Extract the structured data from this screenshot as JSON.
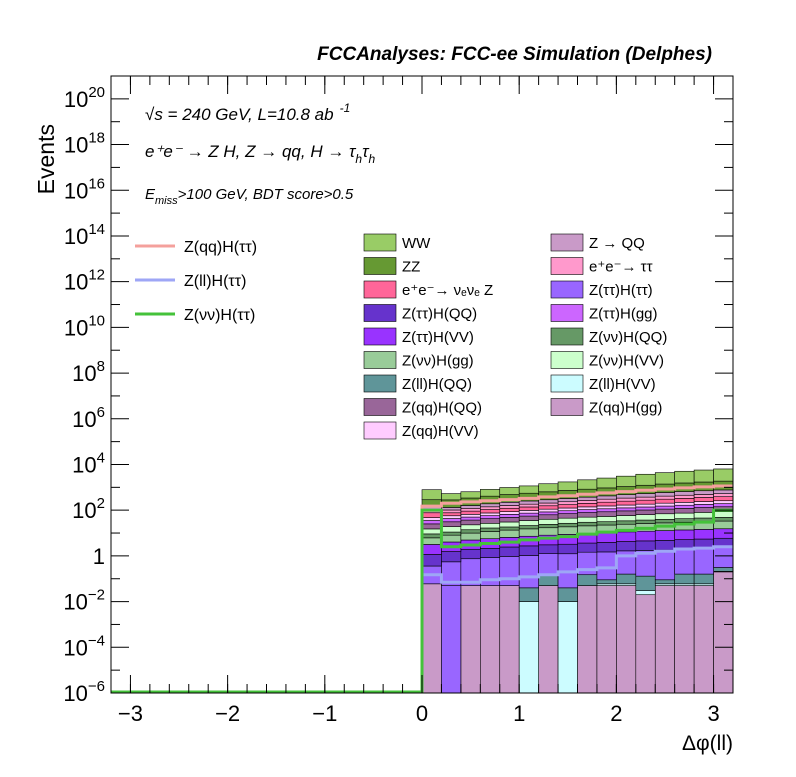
{
  "header": {
    "title": "FCCAnalyses: FCC-ee Simulation (Delphes)",
    "line1": "√s = 240 GeV, L=10.8 ab",
    "line1_sup": "-1",
    "line2": "e⁺e⁻ → Z H, Z → qq, H → τ",
    "line2_sub": "h",
    "line2_tail": "τ",
    "line2_sub2": "h",
    "line3_main": "E",
    "line3_sub": "miss",
    "line3_tail": ">100 GeV, BDT score>0.5"
  },
  "colors": {
    "frame": "#000000",
    "signal_zqq": "#f4a09c",
    "signal_zll": "#9ea6f6",
    "signal_znn": "#44c23a"
  },
  "chart_data": {
    "type": "area",
    "xlabel": "Δφ(ll)",
    "ylabel": "Events",
    "y_scale": "log",
    "xlim": [
      -3.2,
      3.2
    ],
    "ylim": [
      1e-06,
      1e+21
    ],
    "x_ticks": [
      "−3",
      "−2",
      "−1",
      "0",
      "1",
      "2",
      "3"
    ],
    "x_tick_values": [
      -3,
      -2,
      -1,
      0,
      1,
      2,
      3
    ],
    "y_ticks": [
      {
        "base": "10",
        "exp": "20",
        "value": 1e+20
      },
      {
        "base": "10",
        "exp": "18",
        "value": 1e+18
      },
      {
        "base": "10",
        "exp": "16",
        "value": 1e+16
      },
      {
        "base": "10",
        "exp": "14",
        "value": 100000000000000.0
      },
      {
        "base": "10",
        "exp": "12",
        "value": 1000000000000.0
      },
      {
        "base": "10",
        "exp": "10",
        "value": 10000000000.0
      },
      {
        "base": "10",
        "exp": "8",
        "value": 100000000.0
      },
      {
        "base": "10",
        "exp": "6",
        "value": 1000000.0
      },
      {
        "base": "10",
        "exp": "4",
        "value": 10000.0
      },
      {
        "base": "10",
        "exp": "2",
        "value": 100.0
      },
      {
        "base": "1",
        "exp": "",
        "value": 1
      },
      {
        "base": "10",
        "exp": "−2",
        "value": 0.01
      },
      {
        "base": "10",
        "exp": "−4",
        "value": 0.0001
      },
      {
        "base": "10",
        "exp": "−6",
        "value": 1e-06
      }
    ],
    "bin_edges": [
      0.0,
      0.2,
      0.4,
      0.6,
      0.8,
      1.0,
      1.2,
      1.4,
      1.6,
      1.8,
      2.0,
      2.2,
      2.4,
      2.6,
      2.8,
      3.0,
      3.2
    ],
    "stack_layers": [
      {
        "fill": "#c99ac8",
        "values": [
          0.06,
          0.0,
          0.05,
          0.05,
          0.05,
          0.0,
          0.05,
          0.0,
          0.05,
          0.05,
          0.05,
          0.02,
          0.05,
          0.05,
          0.05,
          0.2
        ]
      },
      {
        "fill": "#ccfcff",
        "values": [
          0.0,
          0.0,
          0.0,
          0.0,
          0.0,
          0.01,
          0.0,
          0.01,
          0.0,
          0.01,
          0.01,
          0.01,
          0.01,
          0.01,
          0.01,
          0.01
        ]
      },
      {
        "fill": "#9966ff",
        "values": [
          0.0,
          0.05,
          0.0,
          0.0,
          0.0,
          0.0,
          0.0,
          0.0,
          0.0,
          0.0,
          0.0,
          0.0,
          0.0,
          0.0,
          0.0,
          0.0
        ]
      },
      {
        "fill": "#5f9599",
        "values": [
          0.0,
          0.0,
          0.0,
          0.0,
          0.0,
          0.03,
          0.1,
          0.03,
          0.1,
          0.03,
          0.1,
          0.1,
          0.03,
          0.1,
          0.1,
          0.1
        ]
      },
      {
        "fill": "#9966ff",
        "values": [
          0.3,
          0.5,
          0.7,
          0.8,
          0.9,
          1.0,
          1.1,
          1.2,
          1.3,
          1.4,
          1.5,
          1.6,
          1.7,
          1.8,
          1.9,
          2.0
        ]
      },
      {
        "fill": "#6633cc",
        "values": [
          0.8,
          1.0,
          1.2,
          1.3,
          1.5,
          1.7,
          1.8,
          2.0,
          2.2,
          2.4,
          2.6,
          2.8,
          3.0,
          3.2,
          3.4,
          3.6
        ]
      },
      {
        "fill": "#9933ff",
        "values": [
          2.0,
          2.5,
          3.0,
          3.5,
          4.0,
          4.5,
          5.0,
          5.5,
          6.0,
          6.5,
          7.0,
          7.5,
          8.0,
          8.5,
          9.0,
          9.5
        ]
      },
      {
        "fill": "#99cc99",
        "values": [
          3.0,
          4.0,
          5.0,
          6.0,
          7.0,
          8.0,
          9.0,
          10.0,
          11.0,
          12.0,
          13.0,
          14.0,
          15.0,
          16.0,
          17.0,
          18.0
        ]
      },
      {
        "fill": "#669966",
        "values": [
          3.0,
          3.0,
          4.0,
          5.0,
          5.0,
          6.0,
          7.0,
          8.0,
          9.0,
          9.0,
          10.0,
          11.0,
          12.0,
          13.0,
          14.0,
          15.0
        ]
      },
      {
        "fill": "#ccffcc",
        "values": [
          6.0,
          8.0,
          9.0,
          10.0,
          12.0,
          14.0,
          16.0,
          18.0,
          20.0,
          22.0,
          24.0,
          27.0,
          30.0,
          32.0,
          35.0,
          38.0
        ]
      },
      {
        "fill": "#996699",
        "values": [
          10.0,
          12.0,
          14.0,
          16.0,
          18.0,
          20.0,
          23.0,
          26.0,
          29.0,
          32.0,
          35.0,
          38.0,
          42.0,
          46.0,
          50.0,
          55.0
        ]
      },
      {
        "fill": "#cc66ff",
        "values": [
          10.0,
          12.0,
          13.0,
          15.0,
          17.0,
          19.0,
          21.0,
          24.0,
          27.0,
          30.0,
          33.0,
          36.0,
          40.0,
          44.0,
          48.0,
          52.0
        ]
      },
      {
        "fill": "#ffccff",
        "values": [
          12.0,
          14.0,
          16.0,
          18.0,
          21.0,
          24.0,
          27.0,
          30.0,
          34.0,
          38.0,
          42.0,
          46.0,
          51.0,
          56.0,
          61.0,
          66.0
        ]
      },
      {
        "fill": "#ff6699",
        "values": [
          30.0,
          20.0,
          25.0,
          30.0,
          35.0,
          40.0,
          45.0,
          50.0,
          60.0,
          70.0,
          80.0,
          90.0,
          100.0,
          110.0,
          120.0,
          130.0
        ]
      },
      {
        "fill": "#ff99cc",
        "values": [
          20.0,
          25.0,
          30.0,
          35.0,
          40.0,
          45.0,
          50.0,
          60.0,
          70.0,
          80.0,
          90.0,
          100.0,
          110.0,
          120.0,
          130.0,
          140.0
        ]
      },
      {
        "fill": "#c99ac8",
        "values": [
          40.0,
          30.0,
          40.0,
          50.0,
          60.0,
          70.0,
          80.0,
          90.0,
          100.0,
          120.0,
          140.0,
          160.0,
          180.0,
          200.0,
          220.0,
          240.0
        ]
      },
      {
        "fill": "#669933",
        "values": [
          150.0,
          150.0,
          180.0,
          220.0,
          260.0,
          300.0,
          350.0,
          400.0,
          460.0,
          520.0,
          600.0,
          700.0,
          800.0,
          900.0,
          1000.0,
          1100.0
        ]
      },
      {
        "fill": "#99cc66",
        "values": [
          500.0,
          250.0,
          300.0,
          400.0,
          500.0,
          600.0,
          800.0,
          1000.0,
          1300.0,
          1600.0,
          2000.0,
          2500.0,
          3000.0,
          3500.0,
          4000.0,
          4500.0
        ]
      }
    ],
    "signal_lines": [
      {
        "name": "Z(qq)H(ττ)",
        "color": "#f4a09c",
        "values": [
          150,
          200,
          230,
          260,
          290,
          330,
          380,
          430,
          500,
          570,
          650,
          750,
          850,
          950,
          1050,
          1150
        ]
      },
      {
        "name": "Z(ll)H(ττ)",
        "color": "#9ea6f6",
        "values": [
          0.15,
          0.07,
          0.07,
          0.09,
          0.1,
          0.12,
          0.15,
          0.2,
          0.25,
          0.3,
          1.0,
          1.3,
          1.6,
          2.0,
          2.2,
          2.5
        ]
      },
      {
        "name": "Z(νν)H(ττ)",
        "color": "#44c23a",
        "values": [
          100,
          2.5,
          3.0,
          3.5,
          4.0,
          5.0,
          6.0,
          7.0,
          9.0,
          11.0,
          13.0,
          16.0,
          20.0,
          25.0,
          30.0,
          100.0
        ]
      }
    ],
    "legend_signal": [
      {
        "name": "Z(qq)H(ττ)",
        "color": "#f4a09c"
      },
      {
        "name": "Z(ll)H(ττ)",
        "color": "#9ea6f6"
      },
      {
        "name": "Z(νν)H(ττ)",
        "color": "#44c23a"
      }
    ],
    "legend_background": [
      {
        "name": "WW",
        "color": "#99cc66"
      },
      {
        "name": "Z → QQ",
        "color": "#c99ac8"
      },
      {
        "name": "ZZ",
        "color": "#669933"
      },
      {
        "name": "e⁺e⁻→ ττ",
        "color": "#ff99cc"
      },
      {
        "name": "e⁺e⁻→ νₑνₑ Z",
        "color": "#ff6699"
      },
      {
        "name": "Z(ττ)H(ττ)",
        "color": "#9966ff"
      },
      {
        "name": "Z(ττ)H(QQ)",
        "color": "#6633cc"
      },
      {
        "name": "Z(ττ)H(gg)",
        "color": "#cc66ff"
      },
      {
        "name": "Z(ττ)H(VV)",
        "color": "#9933ff"
      },
      {
        "name": "Z(νν)H(QQ)",
        "color": "#669966"
      },
      {
        "name": "Z(νν)H(gg)",
        "color": "#99cc99"
      },
      {
        "name": "Z(νν)H(VV)",
        "color": "#ccffcc"
      },
      {
        "name": "Z(ll)H(QQ)",
        "color": "#5f9599"
      },
      {
        "name": "Z(ll)H(VV)",
        "color": "#ccfcff"
      },
      {
        "name": "Z(qq)H(QQ)",
        "color": "#996699"
      },
      {
        "name": "Z(qq)H(gg)",
        "color": "#c99ac8"
      },
      {
        "name": "Z(qq)H(VV)",
        "color": "#ffccff"
      }
    ]
  }
}
